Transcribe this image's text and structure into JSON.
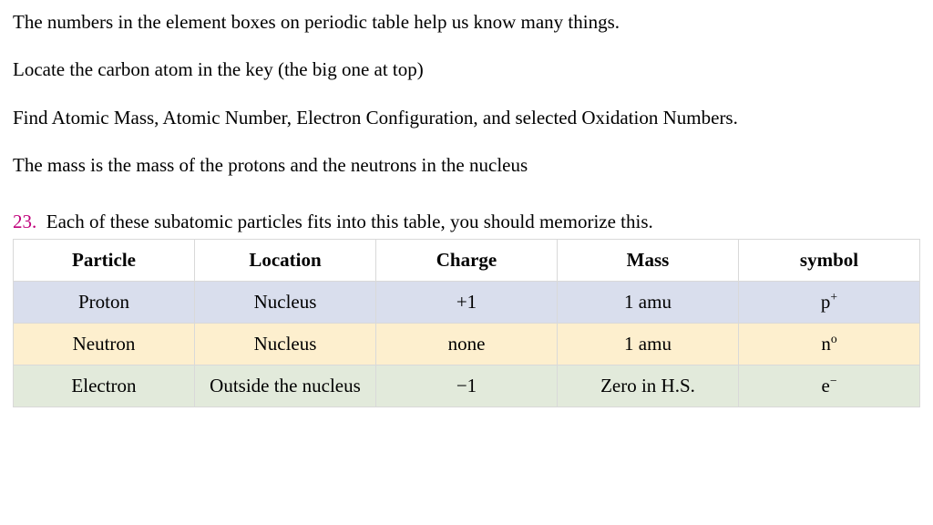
{
  "paragraphs": {
    "p1": "The numbers in the element boxes on periodic table help us know many things.",
    "p2": "Locate the carbon atom in the key (the big one at top)",
    "p3": "Find Atomic Mass, Atomic Number, Electron Configuration, and selected Oxidation Numbers.",
    "p4": "The mass is the mass of the protons and the neutrons in the nucleus"
  },
  "question": {
    "number": "23.",
    "text": "Each of these subatomic particles fits into this table, you should memorize this."
  },
  "table": {
    "columns": [
      "Particle",
      "Location",
      "Charge",
      "Mass",
      "symbol"
    ],
    "rows": [
      {
        "class": "row-proton",
        "cells": [
          "Proton",
          "Nucleus",
          "+1",
          "1 amu",
          "p"
        ],
        "sup": "+"
      },
      {
        "class": "row-neutron",
        "cells": [
          "Neutron",
          "Nucleus",
          "none",
          "1 amu",
          "n"
        ],
        "sup": "o"
      },
      {
        "class": "row-electron",
        "cells": [
          "Electron",
          "Outside the nucleus",
          "−1",
          "Zero in H.S.",
          "e"
        ],
        "sup": "−"
      }
    ],
    "header_bg": "#ffffff",
    "row_colors": {
      "proton": "#d9deed",
      "neutron": "#fdefce",
      "electron": "#e2eadb"
    },
    "border_color": "#d9d9d9",
    "font_size": 21
  },
  "colors": {
    "question_number": "#c0007a",
    "text": "#000000",
    "background": "#ffffff"
  }
}
